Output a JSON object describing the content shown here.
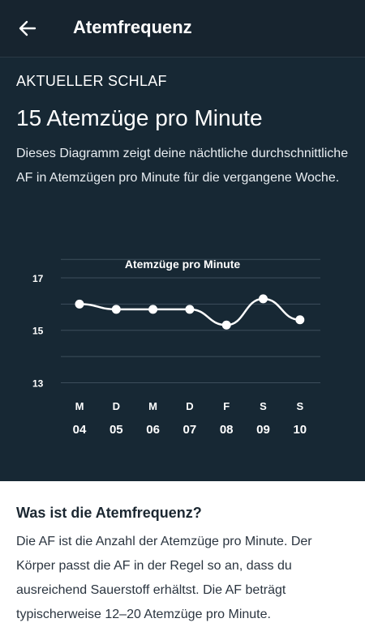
{
  "header": {
    "title": "Atemfrequenz",
    "back_icon": "arrow-left-icon"
  },
  "current": {
    "section_label": "AKTUELLER SCHLAF",
    "headline": "15 Atemzüge pro Minute",
    "description": "Dieses Diagramm zeigt deine nächtliche durchschnittliche AF in Atemzügen pro Minute für die vergangene Woche."
  },
  "chart_data": {
    "type": "line",
    "title": "Atemzüge pro Minute",
    "categories": [
      "M",
      "D",
      "M",
      "D",
      "F",
      "S",
      "S"
    ],
    "day_numbers": [
      "04",
      "05",
      "06",
      "07",
      "08",
      "09",
      "10"
    ],
    "values": [
      16.0,
      15.8,
      15.8,
      15.8,
      15.2,
      16.2,
      15.4
    ],
    "yticks": [
      17,
      15,
      13
    ],
    "ylim": [
      13,
      17.7
    ],
    "grid": true,
    "line_color": "#ffffff",
    "grid_color": "#3d4e5b"
  },
  "info": {
    "title": "Was ist die Atemfrequenz?",
    "text": "Die AF ist die Anzahl der Atemzüge pro Minute. Der Körper passt die AF in der Regel so an, dass du ausreichend Sauerstoff erhältst. Die AF beträgt typischerweise 12–20 Atemzüge pro Minute."
  },
  "colors": {
    "appbar_bg": "#17242f",
    "panel_bg": "#172834",
    "text_dark": "#1b2731"
  }
}
